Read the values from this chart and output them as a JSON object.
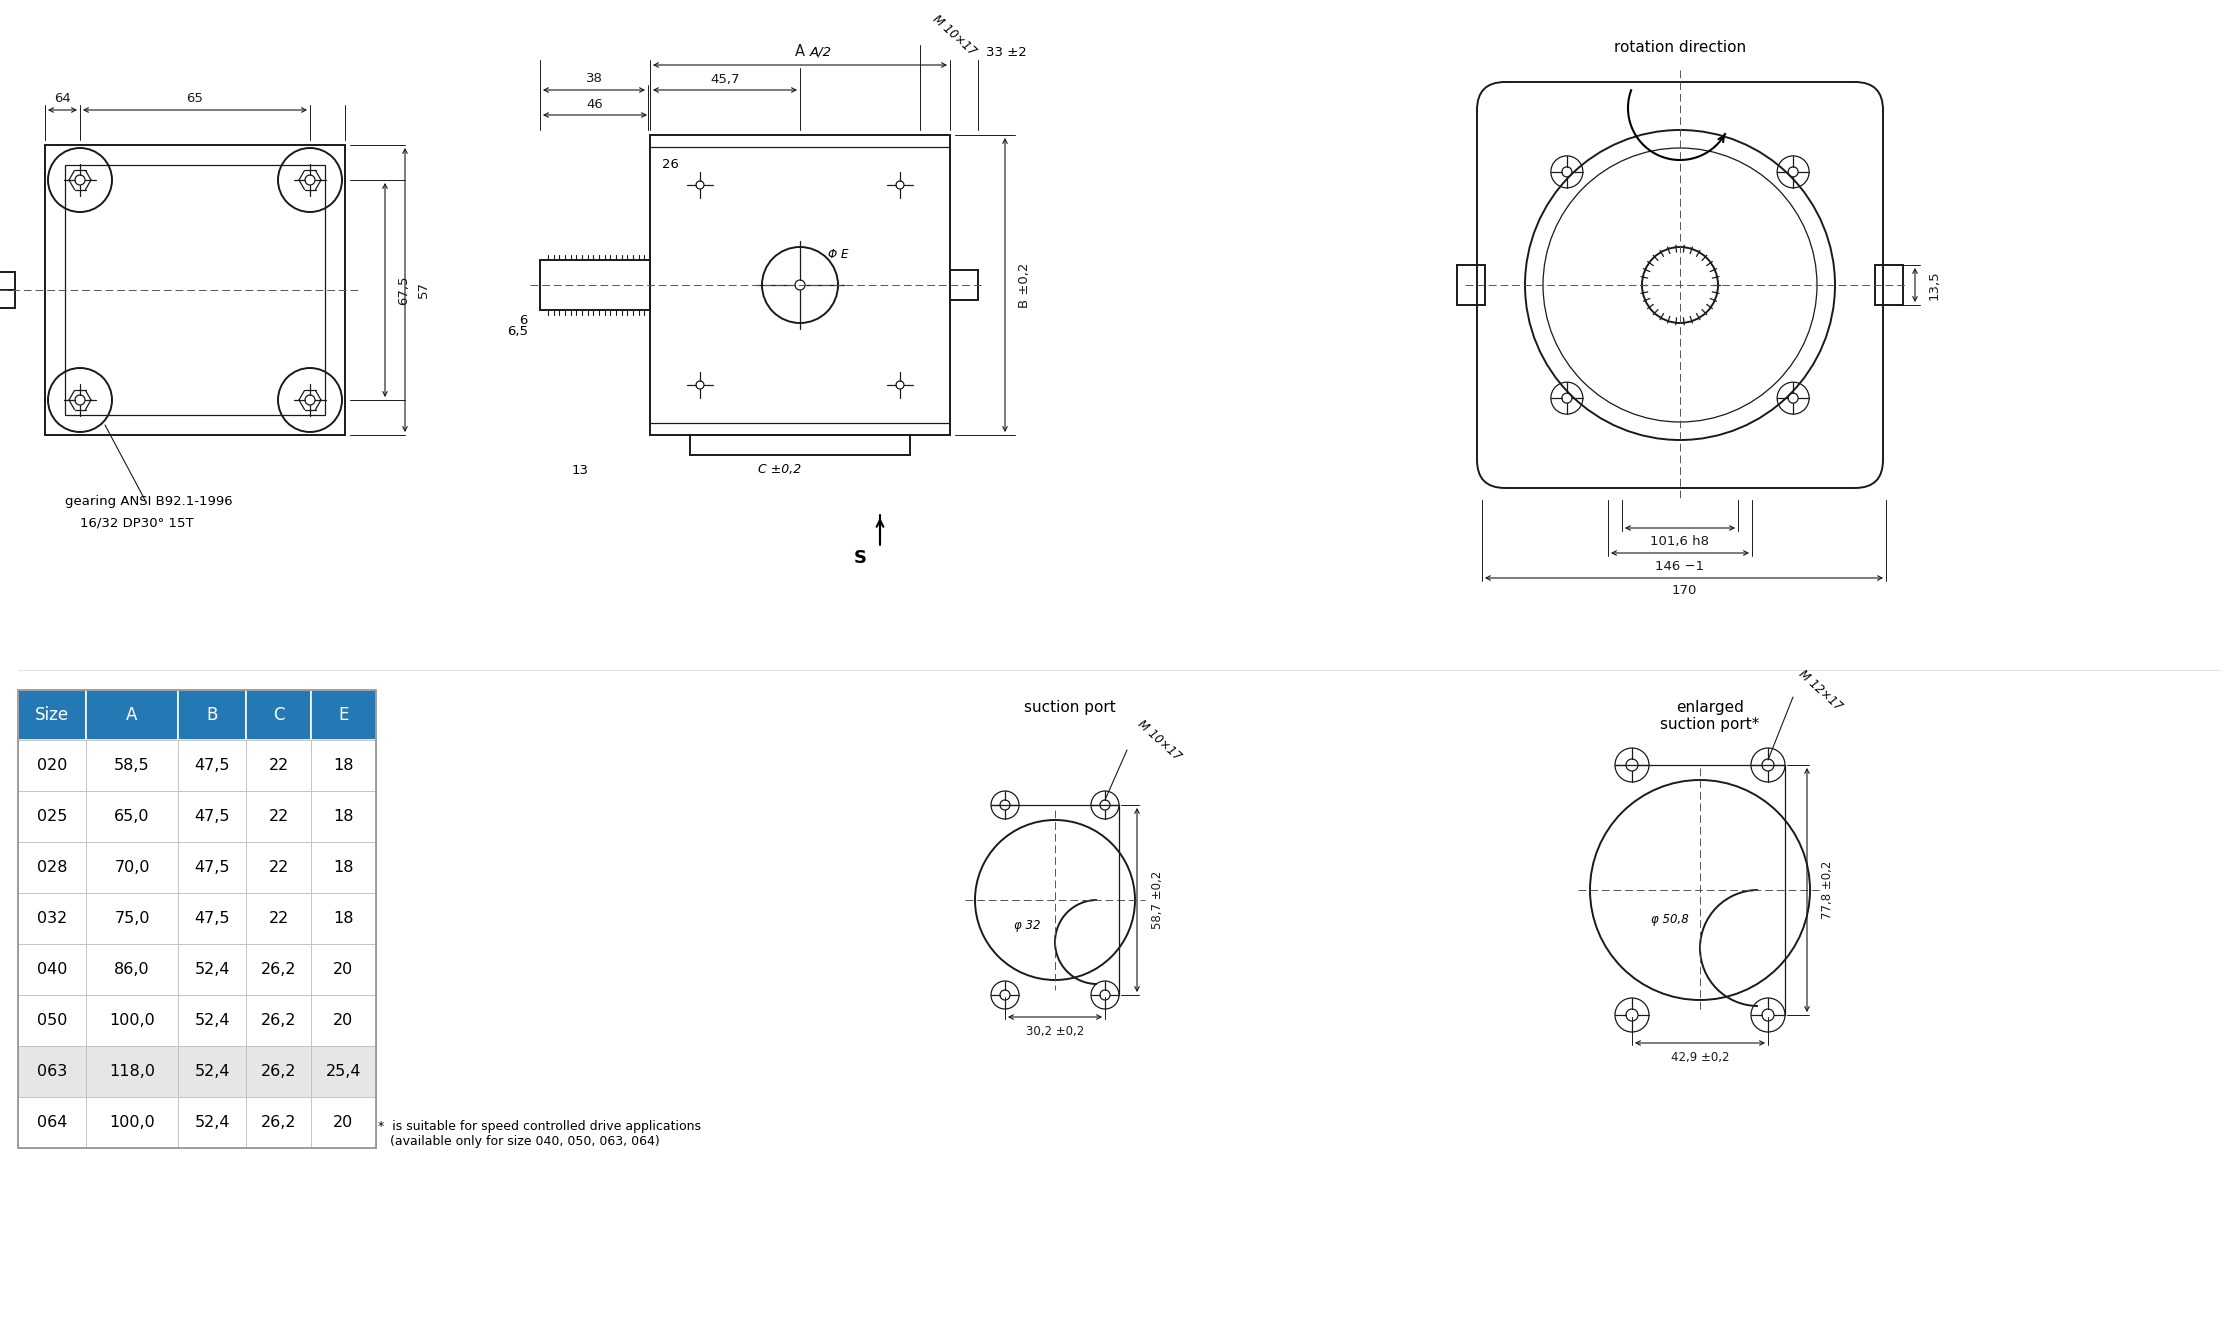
{
  "bg_color": "#ffffff",
  "table_header_color": "#2479b5",
  "table_header_text_color": "#ffffff",
  "table_row_063_color": "#e6e6e6",
  "table_cols": [
    "Size",
    "A",
    "B",
    "C",
    "E"
  ],
  "table_data": [
    [
      "020",
      "58,5",
      "47,5",
      "22",
      "18"
    ],
    [
      "025",
      "65,0",
      "47,5",
      "22",
      "18"
    ],
    [
      "028",
      "70,0",
      "47,5",
      "22",
      "18"
    ],
    [
      "032",
      "75,0",
      "47,5",
      "22",
      "18"
    ],
    [
      "040",
      "86,0",
      "52,4",
      "26,2",
      "20"
    ],
    [
      "050",
      "100,0",
      "52,4",
      "26,2",
      "20"
    ],
    [
      "063",
      "118,0",
      "52,4",
      "26,2",
      "25,4"
    ],
    [
      "064",
      "100,0",
      "52,4",
      "26,2",
      "20"
    ]
  ],
  "gearing_text1": "gearing ANSI B92.1-1996",
  "gearing_text2": "16/32 DP30° 15T",
  "rotation_direction_text": "rotation direction",
  "suction_port_text": "suction port",
  "enlarged_suction_port_text": "enlarged\nsuction port*",
  "footnote_text": "  *  is suitable for speed controlled drive applications\n     (available only for size 040, 050, 063, 064)",
  "line_color": "#1a1a1a",
  "dim_color": "#1a1a1a"
}
